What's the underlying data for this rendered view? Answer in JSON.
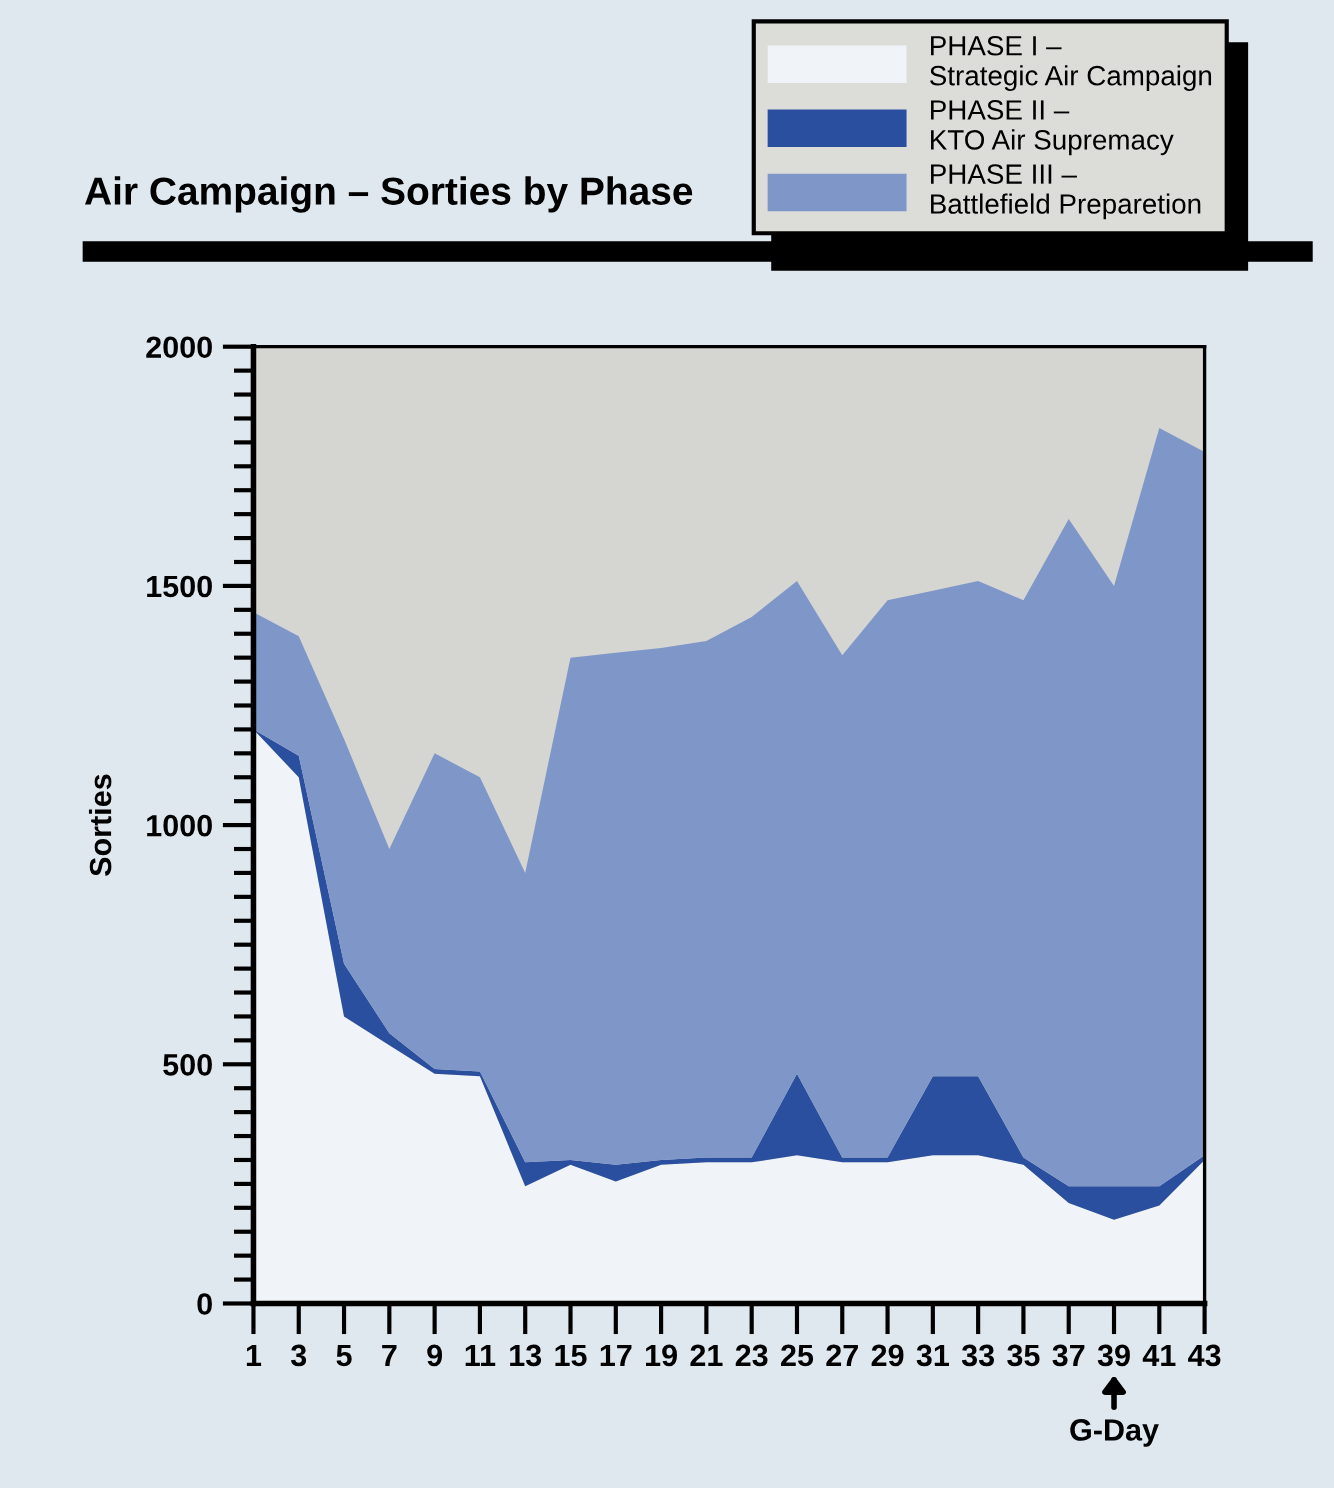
{
  "chart_data": {
    "type": "area",
    "stacked": true,
    "title": "Air Campaign – Sorties by Phase",
    "ylabel": "Sorties",
    "x": [
      1,
      3,
      5,
      7,
      9,
      11,
      13,
      15,
      17,
      19,
      21,
      23,
      25,
      27,
      29,
      31,
      33,
      35,
      37,
      39,
      41,
      43
    ],
    "series": [
      {
        "name": "PHASE I –\nStrategic Air Campaign",
        "color": "#f0f3f7",
        "values": [
          1200,
          1100,
          600,
          540,
          480,
          475,
          245,
          290,
          255,
          290,
          295,
          295,
          310,
          295,
          295,
          310,
          310,
          290,
          210,
          175,
          205,
          300
        ]
      },
      {
        "name": "PHASE II –\nKTO Air Supremacy",
        "color": "#2b4f9f",
        "values": [
          0,
          45,
          110,
          25,
          10,
          10,
          50,
          10,
          35,
          10,
          10,
          10,
          170,
          10,
          10,
          165,
          165,
          15,
          35,
          70,
          40,
          10
        ]
      },
      {
        "name": "PHASE III –\nBattlefield Preparetion",
        "color": "#7f96c9",
        "values": [
          245,
          250,
          470,
          385,
          660,
          615,
          605,
          1050,
          1070,
          1070,
          1080,
          1130,
          1030,
          1050,
          1165,
          1015,
          1035,
          1165,
          1395,
          1255,
          1585,
          1470
        ]
      }
    ],
    "xlim": [
      1,
      43
    ],
    "xticks": [
      1,
      3,
      5,
      7,
      9,
      11,
      13,
      15,
      17,
      19,
      21,
      23,
      25,
      27,
      29,
      31,
      33,
      35,
      37,
      39,
      41,
      43
    ],
    "ylim": [
      0,
      2000
    ],
    "yticks": [
      0,
      {
        "value": 50,
        "label": null
      },
      {
        "value": 100,
        "label": null
      },
      {
        "value": 150,
        "label": null
      },
      {
        "value": 200,
        "label": null
      },
      {
        "value": 250,
        "label": null
      },
      {
        "value": 300,
        "label": null
      },
      {
        "value": 350,
        "label": null
      },
      {
        "value": 400,
        "label": null
      },
      {
        "value": 450,
        "label": null
      },
      500,
      {
        "value": 550,
        "label": null
      },
      {
        "value": 600,
        "label": null
      },
      {
        "value": 650,
        "label": null
      },
      {
        "value": 700,
        "label": null
      },
      {
        "value": 750,
        "label": null
      },
      {
        "value": 800,
        "label": null
      },
      {
        "value": 850,
        "label": null
      },
      {
        "value": 900,
        "label": null
      },
      {
        "value": 950,
        "label": null
      },
      1000,
      {
        "value": 1050,
        "label": null
      },
      {
        "value": 1100,
        "label": null
      },
      {
        "value": 1150,
        "label": null
      },
      {
        "value": 1200,
        "label": null
      },
      {
        "value": 1250,
        "label": null
      },
      {
        "value": 1300,
        "label": null
      },
      {
        "value": 1350,
        "label": null
      },
      {
        "value": 1400,
        "label": null
      },
      {
        "value": 1450,
        "label": null
      },
      1500,
      {
        "value": 1550,
        "label": null
      },
      {
        "value": 1600,
        "label": null
      },
      {
        "value": 1650,
        "label": null
      },
      {
        "value": 1700,
        "label": null
      },
      {
        "value": 1750,
        "label": null
      },
      {
        "value": 1800,
        "label": null
      },
      {
        "value": 1850,
        "label": null
      },
      {
        "value": 1900,
        "label": null
      },
      {
        "value": 1950,
        "label": null
      },
      2000
    ],
    "annotations": [
      "G-Day"
    ],
    "grid": false,
    "legend": "top right"
  }
}
